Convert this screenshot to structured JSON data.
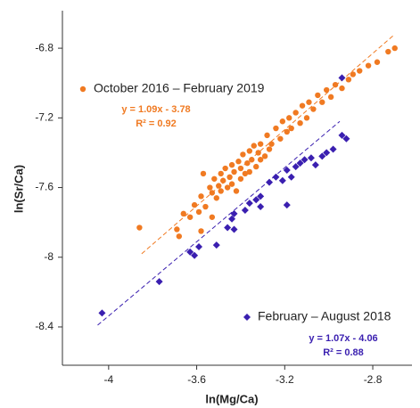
{
  "chart_data": {
    "type": "scatter",
    "x_label": "ln(Mg/Ca)",
    "y_label": "ln(Sr/Ca)",
    "xlim": [
      -4.21,
      -2.63
    ],
    "ylim": [
      -8.62,
      -6.6
    ],
    "xticks": [
      -4,
      -3.6,
      -3.2,
      -2.8
    ],
    "yticks": [
      -6.8,
      -7.2,
      -7.6,
      -8,
      -8.4
    ],
    "series": [
      {
        "name": "October 2016 – February 2019",
        "color": "#f07a22",
        "marker": "circle",
        "equation": "y = 1.09x - 3.78",
        "r2": "R² = 0.92",
        "x": [
          -3.86,
          -3.69,
          -3.66,
          -3.63,
          -3.61,
          -3.59,
          -3.58,
          -3.56,
          -3.54,
          -3.53,
          -3.52,
          -3.51,
          -3.5,
          -3.49,
          -3.49,
          -3.48,
          -3.47,
          -3.46,
          -3.45,
          -3.44,
          -3.44,
          -3.43,
          -3.42,
          -3.41,
          -3.4,
          -3.4,
          -3.39,
          -3.38,
          -3.37,
          -3.36,
          -3.36,
          -3.35,
          -3.34,
          -3.33,
          -3.32,
          -3.31,
          -3.31,
          -3.29,
          -3.28,
          -3.27,
          -3.26,
          -3.24,
          -3.22,
          -3.21,
          -3.19,
          -3.18,
          -3.17,
          -3.15,
          -3.13,
          -3.12,
          -3.1,
          -3.09,
          -3.07,
          -3.05,
          -3.03,
          -3.01,
          -2.99,
          -2.97,
          -2.94,
          -2.91,
          -2.89,
          -2.86,
          -2.82,
          -2.78,
          -2.73,
          -2.7,
          -3.58,
          -3.53,
          -3.68,
          -3.57
        ],
        "values": [
          -7.83,
          -7.84,
          -7.75,
          -7.77,
          -7.7,
          -7.74,
          -7.65,
          -7.71,
          -7.6,
          -7.63,
          -7.55,
          -7.66,
          -7.59,
          -7.52,
          -7.62,
          -7.56,
          -7.49,
          -7.6,
          -7.54,
          -7.47,
          -7.58,
          -7.51,
          -7.62,
          -7.45,
          -7.55,
          -7.49,
          -7.41,
          -7.52,
          -7.46,
          -7.39,
          -7.51,
          -7.44,
          -7.36,
          -7.48,
          -7.4,
          -7.44,
          -7.35,
          -7.42,
          -7.3,
          -7.38,
          -7.35,
          -7.26,
          -7.32,
          -7.22,
          -7.28,
          -7.2,
          -7.26,
          -7.17,
          -7.23,
          -7.13,
          -7.2,
          -7.11,
          -7.15,
          -7.07,
          -7.11,
          -7.04,
          -7.08,
          -7.01,
          -7.03,
          -6.98,
          -6.95,
          -6.93,
          -6.9,
          -6.88,
          -6.82,
          -6.8,
          -7.85,
          -7.77,
          -7.88,
          -7.52
        ],
        "fit_x": [
          -3.85,
          -2.7
        ],
        "fit_y": [
          -7.98,
          -6.72
        ]
      },
      {
        "name": "February – August 2018",
        "color": "#3a1fb0",
        "marker": "diamond",
        "equation": "y = 1.07x - 4.06",
        "r2": "R² = 0.88",
        "x": [
          -4.03,
          -3.77,
          -3.63,
          -3.61,
          -3.59,
          -3.51,
          -3.46,
          -3.43,
          -3.44,
          -3.43,
          -3.38,
          -3.36,
          -3.31,
          -3.33,
          -3.31,
          -3.27,
          -3.24,
          -3.21,
          -3.19,
          -3.17,
          -3.15,
          -3.13,
          -3.11,
          -3.08,
          -3.06,
          -3.03,
          -3.01,
          -2.98,
          -2.94,
          -2.94,
          -2.92,
          -3.19
        ],
        "values": [
          -8.32,
          -8.14,
          -7.97,
          -7.99,
          -7.94,
          -7.93,
          -7.83,
          -7.84,
          -7.78,
          -7.75,
          -7.73,
          -7.69,
          -7.71,
          -7.67,
          -7.65,
          -7.57,
          -7.54,
          -7.56,
          -7.5,
          -7.54,
          -7.48,
          -7.46,
          -7.44,
          -7.43,
          -7.47,
          -7.42,
          -7.4,
          -7.38,
          -7.3,
          -6.97,
          -7.32,
          -7.7
        ],
        "fit_x": [
          -4.05,
          -2.95
        ],
        "fit_y": [
          -8.39,
          -7.22
        ]
      }
    ]
  }
}
